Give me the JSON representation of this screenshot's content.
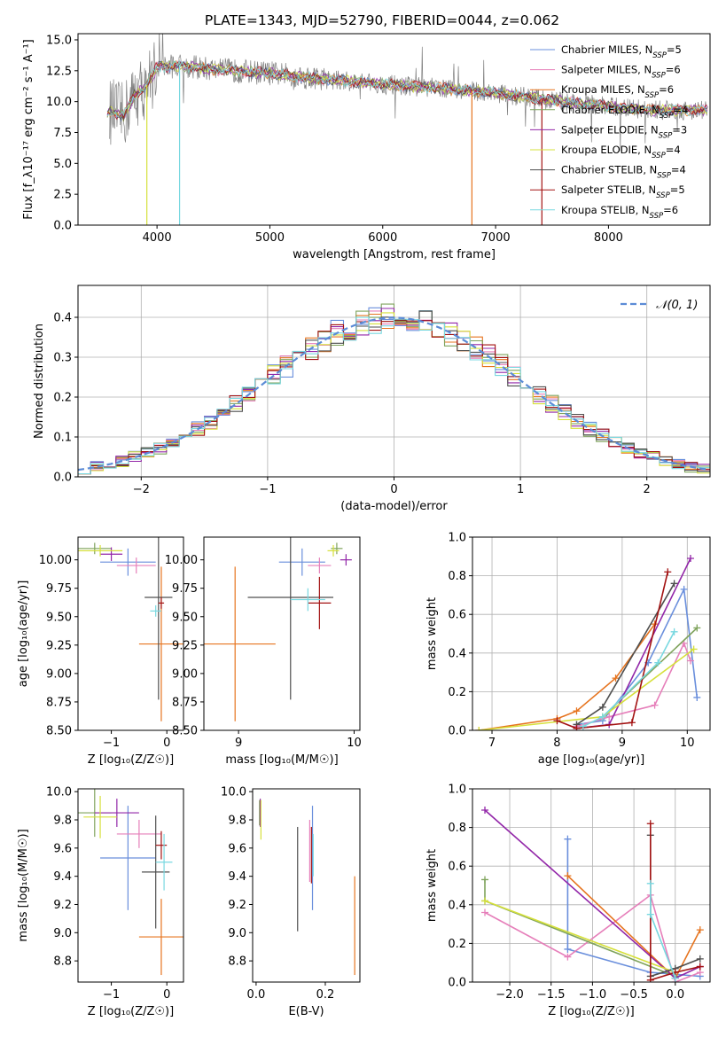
{
  "title": "PLATE=1343, MJD=52790, FIBERID=0044, z=0.062",
  "colors": {
    "Chabrier MILES": "#6a8fdc",
    "Salpeter MILES": "#e67fba",
    "Kroupa MILES": "#e6741f",
    "Chabrier ELODIE": "#7fa35c",
    "Salpeter ELODIE": "#9226a8",
    "Kroupa ELODIE": "#d6e03b",
    "Chabrier STELIB": "#4f4f4f",
    "Salpeter STELIB": "#a31212",
    "Kroupa STELIB": "#78d8e0",
    "data": "#808080",
    "normal": "#5b8bd6"
  },
  "chart_data": [
    {
      "id": "spectrum",
      "type": "line",
      "xlabel": "wavelength [Angstrom, rest frame]",
      "ylabel": "Flux [f_λ10⁻¹⁷ erg cm⁻² s⁻¹ A⁻¹]",
      "xlim": [
        3300,
        8900
      ],
      "ylim": [
        0,
        15.5
      ],
      "xticks": [
        4000,
        5000,
        6000,
        7000,
        8000
      ],
      "yticks": [
        0.0,
        2.5,
        5.0,
        7.5,
        10.0,
        12.5,
        15.0
      ],
      "legend": [
        {
          "model": "Chabrier MILES",
          "label": "Chabrier MILES, N",
          "nssp": "=5"
        },
        {
          "model": "Salpeter MILES",
          "label": "Salpeter MILES, N",
          "nssp": "=6"
        },
        {
          "model": "Kroupa MILES",
          "label": "Kroupa MILES, N",
          "nssp": "=6"
        },
        {
          "model": "Chabrier ELODIE",
          "label": "Chabrier ELODIE, N",
          "nssp": "=4"
        },
        {
          "model": "Salpeter ELODIE",
          "label": "Salpeter ELODIE, N",
          "nssp": "=3"
        },
        {
          "model": "Kroupa ELODIE",
          "label": "Kroupa ELODIE, N",
          "nssp": "=4"
        },
        {
          "model": "Chabrier STELIB",
          "label": "Chabrier STELIB, N",
          "nssp": "=4"
        },
        {
          "model": "Salpeter STELIB",
          "label": "Salpeter STELIB, N",
          "nssp": "=5"
        },
        {
          "model": "Kroupa STELIB",
          "label": "Kroupa STELIB, N",
          "nssp": "=6"
        }
      ],
      "legend_subscript": "SSP",
      "legend_position": "upper right",
      "continuum": [
        [
          3600,
          9.2
        ],
        [
          3700,
          8.8
        ],
        [
          3800,
          10.5
        ],
        [
          3900,
          11.2
        ],
        [
          4000,
          12.8
        ],
        [
          4200,
          12.9
        ],
        [
          4500,
          12.6
        ],
        [
          5000,
          12.3
        ],
        [
          5500,
          11.8
        ],
        [
          6000,
          11.4
        ],
        [
          6500,
          11.1
        ],
        [
          7000,
          10.7
        ],
        [
          7400,
          10.2
        ],
        [
          8000,
          9.6
        ],
        [
          8400,
          9.3
        ],
        [
          8800,
          9.3
        ]
      ]
    },
    {
      "id": "residuals",
      "type": "line",
      "xlabel": "(data-model)/error",
      "ylabel": "Normed distribution",
      "xlim": [
        -2.5,
        2.5
      ],
      "ylim": [
        0,
        0.48
      ],
      "xticks": [
        -2,
        -1,
        0,
        1,
        2
      ],
      "yticks": [
        0.0,
        0.1,
        0.2,
        0.3,
        0.4
      ],
      "grid": true,
      "legend": "𝒩(0, 1)",
      "legend_position": "upper right",
      "bin_width": 0.1
    },
    {
      "id": "z-age",
      "type": "scatter",
      "xlabel": "Z [log₁₀(Z/Z☉)]",
      "ylabel": "age  [log₁₀(age/yr)]",
      "xlim": [
        -1.6,
        0.3
      ],
      "ylim": [
        8.5,
        10.2
      ],
      "xticks": [
        -1,
        0
      ],
      "yticks": [
        8.5,
        8.75,
        9.0,
        9.25,
        9.5,
        9.75,
        10.0
      ],
      "points": [
        {
          "model": "Chabrier MILES",
          "x": -0.7,
          "xe": 0.5,
          "y": 9.98,
          "ye": 0.12
        },
        {
          "model": "Salpeter MILES",
          "x": -0.55,
          "xe": 0.35,
          "y": 9.95,
          "ye": 0.07
        },
        {
          "model": "Kroupa MILES",
          "x": -0.1,
          "xe": 0.4,
          "y": 9.26,
          "ye": 0.68
        },
        {
          "model": "Chabrier ELODIE",
          "x": -1.3,
          "xe": 0.3,
          "y": 10.1,
          "ye": 0.05
        },
        {
          "model": "Salpeter ELODIE",
          "x": -1.0,
          "xe": 0.2,
          "y": 10.05,
          "ye": 0.06
        },
        {
          "model": "Kroupa ELODIE",
          "x": -1.2,
          "xe": 0.4,
          "y": 10.08,
          "ye": 0.05
        },
        {
          "model": "Chabrier STELIB",
          "x": -0.15,
          "xe": 0.25,
          "y": 9.67,
          "ye": 0.9
        },
        {
          "model": "Salpeter STELIB",
          "x": -0.1,
          "xe": 0.05,
          "y": 9.62,
          "ye": 0.05
        },
        {
          "model": "Kroupa STELIB",
          "x": -0.2,
          "xe": 0.1,
          "y": 9.55,
          "ye": 0.05
        }
      ]
    },
    {
      "id": "mass-age",
      "type": "scatter",
      "xlabel": "mass [log₁₀(M/M☉)]",
      "ylabel": "",
      "xlim": [
        8.7,
        10.05
      ],
      "ylim": [
        8.5,
        10.2
      ],
      "xticks": [
        9,
        10
      ],
      "yticks": [
        8.5,
        8.75,
        9.0,
        9.25,
        9.5,
        9.75,
        10.0
      ],
      "points": [
        {
          "model": "Chabrier MILES",
          "x": 9.55,
          "xe": 0.2,
          "y": 9.98,
          "ye": 0.12
        },
        {
          "model": "Salpeter MILES",
          "x": 9.7,
          "xe": 0.1,
          "y": 9.95,
          "ye": 0.07
        },
        {
          "model": "Kroupa MILES",
          "x": 8.97,
          "xe": 0.35,
          "y": 9.26,
          "ye": 0.68
        },
        {
          "model": "Chabrier ELODIE",
          "x": 9.85,
          "xe": 0.05,
          "y": 10.1,
          "ye": 0.05
        },
        {
          "model": "Salpeter ELODIE",
          "x": 9.93,
          "xe": 0.05,
          "y": 10.0,
          "ye": 0.05
        },
        {
          "model": "Kroupa ELODIE",
          "x": 9.82,
          "xe": 0.05,
          "y": 10.08,
          "ye": 0.05
        },
        {
          "model": "Chabrier STELIB",
          "x": 9.45,
          "xe": 0.37,
          "y": 9.67,
          "ye": 0.9
        },
        {
          "model": "Salpeter STELIB",
          "x": 9.7,
          "xe": 0.1,
          "y": 9.62,
          "ye": 0.23
        },
        {
          "model": "Kroupa STELIB",
          "x": 9.6,
          "xe": 0.15,
          "y": 9.65,
          "ye": 0.1
        }
      ]
    },
    {
      "id": "weight-age",
      "type": "line",
      "xlabel": "age  [log₁₀(age/yr)]",
      "ylabel": "mass weight",
      "xlim": [
        6.7,
        10.35
      ],
      "ylim": [
        0,
        1
      ],
      "xticks": [
        7,
        8,
        9,
        10
      ],
      "yticks": [
        0.0,
        0.2,
        0.4,
        0.6,
        0.8,
        1.0
      ],
      "grid": true,
      "series": [
        {
          "model": "Chabrier MILES",
          "x": [
            8.3,
            8.7,
            9.4,
            9.95,
            10.15
          ],
          "y": [
            0.03,
            0.05,
            0.35,
            0.73,
            0.17
          ]
        },
        {
          "model": "Salpeter MILES",
          "x": [
            8.3,
            8.8,
            9.5,
            9.95,
            10.05
          ],
          "y": [
            0.02,
            0.07,
            0.13,
            0.45,
            0.36
          ]
        },
        {
          "model": "Kroupa MILES",
          "x": [
            6.8,
            8.0,
            8.3,
            8.9,
            9.5
          ],
          "y": [
            0.0,
            0.06,
            0.1,
            0.27,
            0.55
          ]
        },
        {
          "model": "Chabrier ELODIE",
          "x": [
            8.7,
            10.15
          ],
          "y": [
            0.07,
            0.53
          ]
        },
        {
          "model": "Salpeter ELODIE",
          "x": [
            8.3,
            8.8,
            10.05
          ],
          "y": [
            0.01,
            0.03,
            0.89
          ]
        },
        {
          "model": "Kroupa ELODIE",
          "x": [
            6.8,
            8.7,
            10.1
          ],
          "y": [
            0.0,
            0.07,
            0.42
          ]
        },
        {
          "model": "Chabrier STELIB",
          "x": [
            8.3,
            8.7,
            9.8
          ],
          "y": [
            0.03,
            0.12,
            0.76
          ]
        },
        {
          "model": "Salpeter STELIB",
          "x": [
            8.0,
            8.3,
            9.15,
            9.7
          ],
          "y": [
            0.05,
            0.01,
            0.04,
            0.82
          ]
        },
        {
          "model": "Kroupa STELIB",
          "x": [
            8.4,
            8.7,
            9.55,
            9.8
          ],
          "y": [
            0.02,
            0.07,
            0.35,
            0.51
          ]
        }
      ]
    },
    {
      "id": "z-mass",
      "type": "scatter",
      "xlabel": "Z [log₁₀(Z/Z☉)]",
      "ylabel": "mass [log₁₀(M/M☉)]",
      "xlim": [
        -1.6,
        0.3
      ],
      "ylim": [
        8.65,
        10.02
      ],
      "xticks": [
        -1,
        0
      ],
      "yticks": [
        8.8,
        9.0,
        9.2,
        9.4,
        9.6,
        9.8,
        10.0
      ],
      "points": [
        {
          "model": "Chabrier MILES",
          "x": -0.7,
          "xe": 0.5,
          "y": 9.53,
          "ye": 0.37
        },
        {
          "model": "Salpeter MILES",
          "x": -0.5,
          "xe": 0.4,
          "y": 9.7,
          "ye": 0.1
        },
        {
          "model": "Kroupa MILES",
          "x": -0.1,
          "xe": 0.4,
          "y": 8.97,
          "ye": 0.27
        },
        {
          "model": "Chabrier ELODIE",
          "x": -1.3,
          "xe": 0.3,
          "y": 9.85,
          "ye": 0.17
        },
        {
          "model": "Salpeter ELODIE",
          "x": -0.9,
          "xe": 0.4,
          "y": 9.85,
          "ye": 0.1
        },
        {
          "model": "Kroupa ELODIE",
          "x": -1.2,
          "xe": 0.3,
          "y": 9.82,
          "ye": 0.15
        },
        {
          "model": "Chabrier STELIB",
          "x": -0.2,
          "xe": 0.25,
          "y": 9.43,
          "ye": 0.4
        },
        {
          "model": "Salpeter STELIB",
          "x": -0.1,
          "xe": 0.1,
          "y": 9.62,
          "ye": 0.1
        },
        {
          "model": "Kroupa STELIB",
          "x": -0.05,
          "xe": 0.15,
          "y": 9.5,
          "ye": 0.2
        }
      ]
    },
    {
      "id": "ebv-mass",
      "type": "scatter",
      "xlabel": "E(B-V)",
      "ylabel": "",
      "xlim": [
        -0.01,
        0.3
      ],
      "ylim": [
        8.65,
        10.02
      ],
      "xticks": [
        0.0,
        0.2
      ],
      "yticks": [
        8.8,
        9.0,
        9.2,
        9.4,
        9.6,
        9.8,
        10.0
      ],
      "points": [
        {
          "model": "Chabrier MILES",
          "x": 0.163,
          "y": 9.53,
          "ye": 0.37
        },
        {
          "model": "Salpeter MILES",
          "x": 0.155,
          "y": 9.58,
          "ye": 0.22
        },
        {
          "model": "Kroupa MILES",
          "x": 0.285,
          "y": 9.05,
          "ye": 0.35
        },
        {
          "model": "Chabrier ELODIE",
          "x": 0.01,
          "y": 9.85,
          "ye": 0.09
        },
        {
          "model": "Salpeter ELODIE",
          "x": 0.012,
          "y": 9.85,
          "ye": 0.1
        },
        {
          "model": "Kroupa ELODIE",
          "x": 0.014,
          "y": 9.8,
          "ye": 0.14
        },
        {
          "model": "Chabrier STELIB",
          "x": 0.12,
          "y": 9.38,
          "ye": 0.37
        },
        {
          "model": "Salpeter STELIB",
          "x": 0.16,
          "y": 9.55,
          "ye": 0.2
        },
        {
          "model": "Kroupa STELIB",
          "x": 0.165,
          "y": 9.55,
          "ye": 0.15
        }
      ]
    },
    {
      "id": "weight-z",
      "type": "line",
      "xlabel": "Z [log₁₀(Z/Z☉)]",
      "ylabel": "mass weight",
      "xlim": [
        -2.45,
        0.42
      ],
      "ylim": [
        0,
        1
      ],
      "xticks": [
        -2.0,
        -1.5,
        -1.0,
        -0.5,
        0.0
      ],
      "yticks": [
        0.0,
        0.2,
        0.4,
        0.6,
        0.8,
        1.0
      ],
      "grid": true,
      "series": [
        {
          "model": "Chabrier MILES",
          "x": [
            -1.3,
            -1.3,
            -0.3,
            0.3
          ],
          "y": [
            0.74,
            0.17,
            0.05,
            0.03
          ]
        },
        {
          "model": "Salpeter MILES",
          "x": [
            -2.3,
            -1.3,
            -0.3,
            0.0,
            0.3
          ],
          "y": [
            0.36,
            0.13,
            0.45,
            0.0,
            0.05
          ]
        },
        {
          "model": "Kroupa MILES",
          "x": [
            -1.3,
            0.0,
            0.3
          ],
          "y": [
            0.55,
            0.02,
            0.27
          ]
        },
        {
          "model": "Chabrier ELODIE",
          "x": [
            -2.3,
            -2.3,
            0.0
          ],
          "y": [
            0.53,
            0.42,
            0.03
          ]
        },
        {
          "model": "Salpeter ELODIE",
          "x": [
            -2.3,
            0.0,
            0.3
          ],
          "y": [
            0.89,
            0.02,
            0.08
          ]
        },
        {
          "model": "Kroupa ELODIE",
          "x": [
            -2.3,
            0.0
          ],
          "y": [
            0.42,
            0.05
          ]
        },
        {
          "model": "Chabrier STELIB",
          "x": [
            -0.3,
            -0.3,
            0.0,
            0.3
          ],
          "y": [
            0.76,
            0.03,
            0.07,
            0.12
          ]
        },
        {
          "model": "Salpeter STELIB",
          "x": [
            -0.3,
            -0.3,
            0.0,
            0.3
          ],
          "y": [
            0.82,
            0.01,
            0.05,
            0.08
          ]
        },
        {
          "model": "Kroupa STELIB",
          "x": [
            -0.3,
            -0.3,
            0.0
          ],
          "y": [
            0.51,
            0.35,
            0.02
          ]
        }
      ]
    }
  ]
}
